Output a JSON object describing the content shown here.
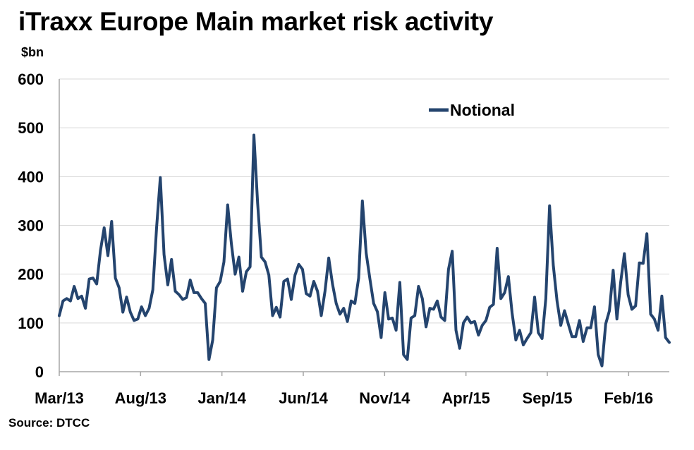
{
  "title": "iTraxx Europe Main market risk activity",
  "unit_label": "$bn",
  "source": "Source: DTCC",
  "colors": {
    "series": "#24446e",
    "grid": "#d9d9d9",
    "axis": "#a6a6a6"
  },
  "chart_data": {
    "type": "line",
    "title": "iTraxx Europe Main market risk activity",
    "ylabel": "$bn",
    "ylim": [
      0,
      600
    ],
    "yticks": [
      0,
      100,
      200,
      300,
      400,
      500,
      600
    ],
    "xtick_labels": [
      "Mar/13",
      "Aug/13",
      "Jan/14",
      "Jun/14",
      "Nov/14",
      "Apr/15",
      "Sep/15",
      "Feb/16"
    ],
    "grid": true,
    "legend_position": "top-right",
    "series": [
      {
        "name": "Notional",
        "values": [
          115,
          145,
          150,
          145,
          175,
          150,
          155,
          130,
          190,
          192,
          180,
          248,
          295,
          238,
          308,
          192,
          172,
          122,
          153,
          122,
          105,
          108,
          133,
          115,
          130,
          168,
          295,
          398,
          240,
          178,
          230,
          165,
          158,
          148,
          152,
          188,
          162,
          162,
          150,
          140,
          25,
          65,
          172,
          185,
          225,
          342,
          262,
          200,
          235,
          165,
          205,
          215,
          485,
          345,
          235,
          225,
          198,
          115,
          132,
          112,
          185,
          190,
          148,
          198,
          220,
          210,
          160,
          155,
          185,
          165,
          115,
          165,
          233,
          180,
          140,
          118,
          130,
          103,
          145,
          140,
          192,
          350,
          243,
          190,
          140,
          123,
          70,
          162,
          108,
          110,
          85,
          183,
          35,
          25,
          110,
          115,
          175,
          150,
          92,
          130,
          128,
          145,
          112,
          105,
          210,
          247,
          85,
          48,
          100,
          112,
          100,
          103,
          75,
          95,
          105,
          132,
          138,
          253,
          150,
          162,
          195,
          120,
          65,
          85,
          55,
          68,
          80,
          153,
          80,
          68,
          150,
          340,
          218,
          145,
          95,
          125,
          98,
          72,
          72,
          105,
          62,
          90,
          90,
          133,
          35,
          12,
          98,
          125,
          208,
          108,
          183,
          242,
          158,
          128,
          135,
          223,
          222,
          283,
          118,
          108,
          85,
          155,
          70,
          60
        ]
      }
    ]
  }
}
